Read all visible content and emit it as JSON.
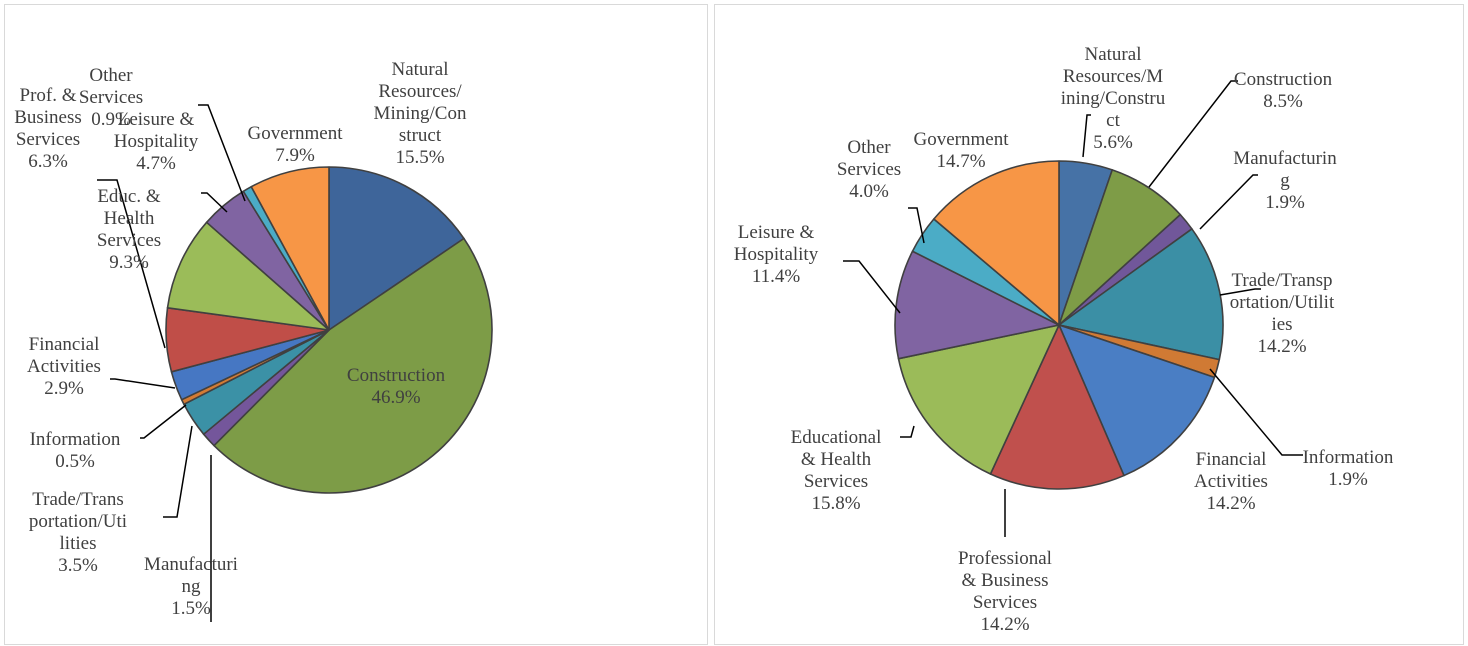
{
  "chart_data": [
    {
      "type": "pie",
      "title": "",
      "start_angle_deg": 0,
      "direction": "clockwise",
      "labels": [
        "Natural Resources/Mining/Construct",
        "Construction",
        "Manufacturing",
        "Trade/Transportation/Utilities",
        "Information",
        "Financial Activities",
        "Prof. & Business Services",
        "Educ. & Health Services",
        "Leisure & Hospitality",
        "Other Services",
        "Government"
      ],
      "values": [
        15.5,
        46.9,
        1.5,
        3.5,
        0.5,
        2.9,
        6.3,
        9.3,
        4.7,
        0.9,
        7.9
      ],
      "colors": [
        "#3e659a",
        "#7d9c47",
        "#74569b",
        "#3b91a6",
        "#d37b34",
        "#4677c3",
        "#c04e48",
        "#9bbc59",
        "#8064a2",
        "#4bacc6",
        "#f79646"
      ],
      "data_labels": [
        [
          "Natural",
          "Resources/",
          "Mining/Con",
          "struct",
          "15.5%"
        ],
        [
          "Construction",
          "46.9%"
        ],
        [
          "Manufacturi",
          "ng",
          "1.5%"
        ],
        [
          "Trade/Trans",
          "portation/Uti",
          "lities",
          "3.5%"
        ],
        [
          "Information",
          "0.5%"
        ],
        [
          "Financial",
          "Activities",
          "2.9%"
        ],
        [
          "Prof. &",
          "Business",
          "Services",
          "6.3%"
        ],
        [
          "Educ. &",
          "Health",
          "Services",
          "9.3%"
        ],
        [
          "Leisure &",
          "Hospitality",
          "4.7%"
        ],
        [
          "Other",
          "Services",
          "0.9%"
        ],
        [
          "Government",
          "7.9%"
        ]
      ]
    },
    {
      "type": "pie",
      "title": "",
      "start_angle_deg": 0,
      "direction": "clockwise",
      "labels": [
        "Natural Resources/Mining/Construct",
        "Construction",
        "Manufacturing",
        "Trade/Transportation/Utilities",
        "Information",
        "Financial Activities",
        "Professional & Business Services",
        "Educational & Health Services",
        "Leisure & Hospitality",
        "Other Services",
        "Government"
      ],
      "values": [
        5.6,
        8.5,
        1.9,
        14.2,
        1.9,
        14.2,
        14.2,
        15.8,
        11.4,
        4.0,
        14.7
      ],
      "colors": [
        "#4672a6",
        "#7e9c47",
        "#71579a",
        "#3b8fa5",
        "#d07a34",
        "#4a7ec4",
        "#c0504d",
        "#9bbb59",
        "#8064a2",
        "#4bacc6",
        "#f79646"
      ],
      "data_labels": [
        [
          "Natural",
          "Resources/M",
          "ining/Constru",
          "ct",
          "5.6%"
        ],
        [
          "Construction",
          "8.5%"
        ],
        [
          "Manufacturin",
          "g",
          "1.9%"
        ],
        [
          "Trade/Transp",
          "ortation/Utilit",
          "ies",
          "14.2%"
        ],
        [
          "Information",
          "1.9%"
        ],
        [
          "Financial",
          "Activities",
          "14.2%"
        ],
        [
          "Professional",
          "& Business",
          "Services",
          "14.2%"
        ],
        [
          "Educational",
          "& Health",
          "Services",
          "15.8%"
        ],
        [
          "Leisure &",
          "Hospitality",
          "11.4%"
        ],
        [
          "Other",
          "Services",
          "4.0%"
        ],
        [
          "Government",
          "14.7%"
        ]
      ]
    }
  ]
}
